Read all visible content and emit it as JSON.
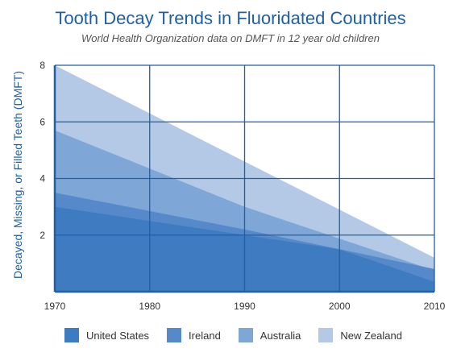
{
  "chart_data": {
    "type": "area",
    "title": "Tooth Decay Trends in Fluoridated Countries",
    "subtitle": "World Health Organization data on DMFT in 12 year old children",
    "xlabel": "",
    "ylabel": "Decayed, Missing, or Filled Teeth (DMFT)",
    "xlim": [
      1970,
      2010
    ],
    "ylim": [
      0,
      8
    ],
    "x_ticks": [
      "1970",
      "1980",
      "1990",
      "2000",
      "2010"
    ],
    "y_ticks": [
      "2",
      "4",
      "6",
      "8"
    ],
    "grid": true,
    "legend_position": "bottom",
    "series": [
      {
        "name": "New Zealand",
        "color": "#b3c9e6",
        "x": [
          1970,
          2010
        ],
        "values": [
          8.0,
          1.2
        ]
      },
      {
        "name": "Australia",
        "color": "#7ea6d6",
        "x": [
          1970,
          1990,
          2010
        ],
        "values": [
          5.7,
          3.0,
          0.75
        ]
      },
      {
        "name": "Ireland",
        "color": "#5689c9",
        "x": [
          1970,
          1990,
          2010
        ],
        "values": [
          3.5,
          2.2,
          0.8
        ]
      },
      {
        "name": "United States",
        "color": "#3f7bc1",
        "x": [
          1970,
          1980,
          1990,
          2000,
          2010
        ],
        "values": [
          3.0,
          2.5,
          2.0,
          1.5,
          0.35
        ]
      }
    ],
    "legend": [
      {
        "name": "United States",
        "color": "#3f7bc1"
      },
      {
        "name": "Ireland",
        "color": "#5689c9"
      },
      {
        "name": "Australia",
        "color": "#7ea6d6"
      },
      {
        "name": "New Zealand",
        "color": "#b3c9e6"
      }
    ],
    "colors": {
      "grid": "#1f5fa6",
      "axis": "#1f5fa6"
    }
  }
}
